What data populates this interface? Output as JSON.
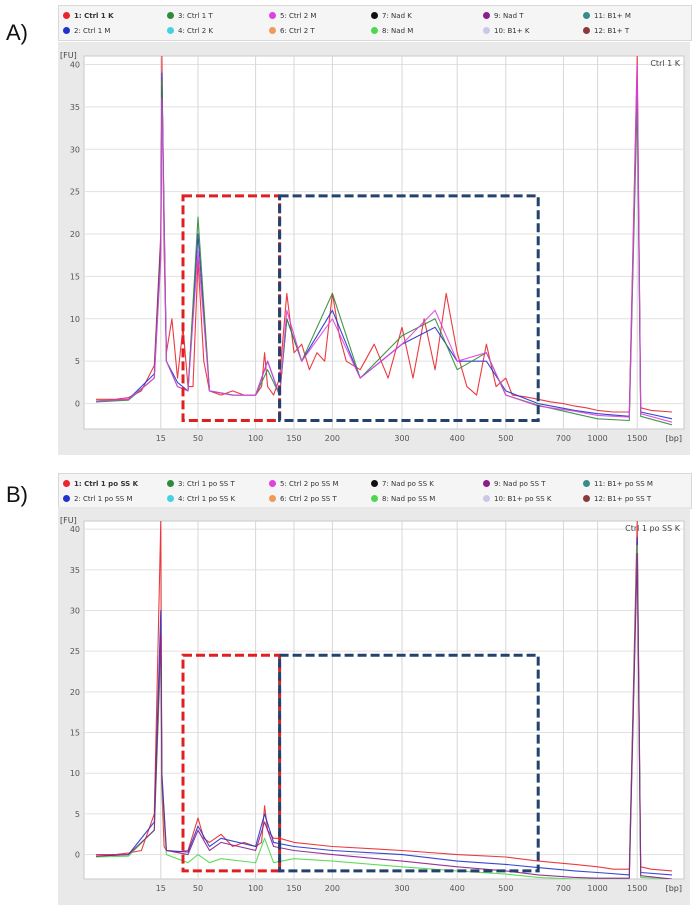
{
  "panels": [
    {
      "label": "A)",
      "corner_label": "Ctrl 1 K",
      "legend": [
        {
          "text": "1: Ctrl 1 K",
          "color": "#e8262b",
          "bold": true
        },
        {
          "text": "2: Ctrl 1 M",
          "color": "#2233cc",
          "bold": false
        },
        {
          "text": "3: Ctrl 1 T",
          "color": "#2e8b3a",
          "bold": false
        },
        {
          "text": "4: Ctrl 2 K",
          "color": "#46d1e0",
          "bold": false
        },
        {
          "text": "5: Ctrl 2 M",
          "color": "#e040e0",
          "bold": false
        },
        {
          "text": "6: Ctrl 2 T",
          "color": "#f09a5a",
          "bold": false
        },
        {
          "text": "7: Nad K",
          "color": "#111111",
          "bold": false
        },
        {
          "text": "8: Nad M",
          "color": "#4cd84c",
          "bold": false
        },
        {
          "text": "9: Nad T",
          "color": "#8a1e8a",
          "bold": false
        },
        {
          "text": "10: B1+ K",
          "color": "#c8c8e8",
          "bold": false
        },
        {
          "text": "11: B1+ M",
          "color": "#3a8a8a",
          "bold": false
        },
        {
          "text": "12: B1+ T",
          "color": "#8a3a3a",
          "bold": false
        }
      ]
    },
    {
      "label": "B)",
      "corner_label": "Ctrl 1 po SS K",
      "legend": [
        {
          "text": "1: Ctrl 1 po SS K",
          "color": "#e8262b",
          "bold": true
        },
        {
          "text": "2: Ctrl 1 po SS M",
          "color": "#2233cc",
          "bold": false
        },
        {
          "text": "3: Ctrl 1 po SS T",
          "color": "#2e8b3a",
          "bold": false
        },
        {
          "text": "4: Ctrl 1 po SS K",
          "color": "#46d1e0",
          "bold": false
        },
        {
          "text": "5: Ctrl 2 po SS M",
          "color": "#e040e0",
          "bold": false
        },
        {
          "text": "6: Ctrl 2 po SS T",
          "color": "#f09a5a",
          "bold": false
        },
        {
          "text": "7: Nad po SS K",
          "color": "#111111",
          "bold": false
        },
        {
          "text": "8: Nad po SS M",
          "color": "#4cd84c",
          "bold": false
        },
        {
          "text": "9: Nad po SS T",
          "color": "#8a1e8a",
          "bold": false
        },
        {
          "text": "10: B1+ po SS K",
          "color": "#c8c8e8",
          "bold": false
        },
        {
          "text": "11: B1+ po SS M",
          "color": "#3a8a8a",
          "bold": false
        },
        {
          "text": "12: B1+ po SS T",
          "color": "#8a3a3a",
          "bold": false
        }
      ]
    }
  ],
  "chart_data": [
    {
      "type": "line",
      "ylabel": "[FU]",
      "xlabel": "[bp]",
      "ylim": [
        -3,
        41
      ],
      "y_ticks": [
        0,
        5,
        10,
        15,
        20,
        25,
        30,
        35,
        40
      ],
      "x_ticks": [
        "15",
        "50",
        "100",
        "150",
        "200",
        "300",
        "400",
        "500",
        "700",
        "1000",
        "1500"
      ],
      "grid": true,
      "boxes": [
        {
          "color": "#e02020",
          "x": [
            "35",
            "140"
          ],
          "y": [
            -2,
            24.5
          ]
        },
        {
          "color": "#23426e",
          "x": [
            "140",
            "600"
          ],
          "y": [
            -2,
            24.5
          ]
        }
      ],
      "series": [
        {
          "color": "#e8262b",
          "x": [
            "5",
            "8",
            "10",
            "12",
            "14",
            "15",
            "16",
            "18",
            "20",
            "25",
            "30",
            "35",
            "40",
            "45",
            "50",
            "55",
            "60",
            "70",
            "80",
            "90",
            "100",
            "110",
            "115",
            "120",
            "130",
            "140",
            "145",
            "150",
            "160",
            "170",
            "180",
            "190",
            "200",
            "210",
            "220",
            "240",
            "260",
            "280",
            "300",
            "320",
            "340",
            "360",
            "380",
            "400",
            "420",
            "440",
            "460",
            "480",
            "500",
            "520",
            "560",
            "600",
            "650",
            "700",
            "800",
            "900",
            "1000",
            "1200",
            "1400",
            "1500",
            "1550",
            "1700",
            "2000"
          ],
          "y": [
            0.5,
            0.5,
            0.7,
            1.5,
            4.5,
            20,
            41,
            18,
            6,
            10,
            3,
            9,
            2,
            2,
            17,
            5,
            1.5,
            1,
            1.5,
            1,
            1,
            2,
            6,
            2,
            1,
            3,
            13,
            6,
            7,
            4,
            6,
            5,
            13,
            8,
            5,
            4,
            7,
            3,
            9,
            3,
            10,
            4,
            13,
            6,
            2,
            1,
            7,
            2,
            3,
            1,
            0.8,
            0.5,
            0.2,
            0,
            -0.3,
            -0.5,
            -0.8,
            -1,
            -1,
            41,
            -0.5,
            -0.8,
            -1
          ]
        },
        {
          "color": "#2233cc",
          "x": [
            "5",
            "10",
            "14",
            "15",
            "16",
            "20",
            "30",
            "40",
            "50",
            "60",
            "80",
            "100",
            "120",
            "140",
            "145",
            "160",
            "200",
            "240",
            "300",
            "360",
            "400",
            "460",
            "500",
            "600",
            "800",
            "1000",
            "1400",
            "1500",
            "1550",
            "2000"
          ],
          "y": [
            0.3,
            0.5,
            3.5,
            19,
            39,
            5,
            2.5,
            1.5,
            20,
            1.5,
            1,
            1,
            5,
            1,
            10,
            5,
            11,
            3,
            7,
            9,
            5,
            5,
            1.5,
            0,
            -0.8,
            -1.2,
            -1.5,
            38,
            -1,
            -1.8
          ]
        },
        {
          "color": "#2e8b3a",
          "x": [
            "5",
            "10",
            "14",
            "15",
            "16",
            "20",
            "30",
            "40",
            "50",
            "60",
            "80",
            "100",
            "120",
            "140",
            "145",
            "160",
            "200",
            "240",
            "300",
            "360",
            "400",
            "460",
            "500",
            "600",
            "800",
            "1000",
            "1400",
            "1500",
            "1550",
            "2000"
          ],
          "y": [
            0.2,
            0.4,
            3,
            18,
            38,
            5,
            2,
            1.5,
            22,
            1.5,
            1,
            1,
            4,
            1,
            10,
            5,
            13,
            3,
            8,
            10,
            4,
            6,
            1,
            -0.2,
            -1.2,
            -1.8,
            -2,
            36,
            -1.5,
            -2.5
          ]
        },
        {
          "color": "#e040e0",
          "x": [
            "5",
            "10",
            "14",
            "15",
            "16",
            "20",
            "30",
            "40",
            "50",
            "60",
            "80",
            "100",
            "120",
            "140",
            "145",
            "160",
            "200",
            "240",
            "300",
            "360",
            "400",
            "460",
            "500",
            "600",
            "800",
            "1000",
            "1400",
            "1500",
            "1550",
            "2000"
          ],
          "y": [
            0.3,
            0.5,
            3,
            17,
            36,
            5,
            2,
            1.5,
            18,
            1.5,
            1,
            1,
            5,
            1,
            11,
            5,
            10,
            3,
            7,
            11,
            5,
            6,
            1,
            -0.3,
            -0.9,
            -1.4,
            -1.6,
            40,
            -1.2,
            -2.2
          ]
        }
      ]
    },
    {
      "type": "line",
      "ylabel": "[FU]",
      "xlabel": "[bp]",
      "ylim": [
        -3,
        41
      ],
      "y_ticks": [
        0,
        5,
        10,
        15,
        20,
        25,
        30,
        35,
        40
      ],
      "x_ticks": [
        "15",
        "50",
        "100",
        "150",
        "200",
        "300",
        "400",
        "500",
        "700",
        "1000",
        "1500"
      ],
      "grid": true,
      "boxes": [
        {
          "color": "#e02020",
          "x": [
            "35",
            "140"
          ],
          "y": [
            -2,
            24.5
          ]
        },
        {
          "color": "#23426e",
          "x": [
            "140",
            "600"
          ],
          "y": [
            -2,
            24.5
          ]
        }
      ],
      "series": [
        {
          "color": "#e8262b",
          "x": [
            "5",
            "8",
            "10",
            "12",
            "14",
            "15",
            "16",
            "18",
            "20",
            "30",
            "40",
            "50",
            "55",
            "60",
            "70",
            "80",
            "90",
            "100",
            "110",
            "115",
            "120",
            "130",
            "140",
            "150",
            "200",
            "300",
            "400",
            "500",
            "600",
            "800",
            "1000",
            "1200",
            "1400",
            "1500",
            "1550",
            "1700",
            "2000"
          ],
          "y": [
            0,
            0,
            0.2,
            0.5,
            5,
            41,
            8,
            1,
            0.5,
            0.3,
            0.5,
            4.5,
            2,
            1.5,
            2.5,
            1,
            1.5,
            1,
            1.5,
            6,
            3,
            2,
            2,
            1.5,
            1,
            0.5,
            0,
            -0.3,
            -0.8,
            -1.2,
            -1.5,
            -1.8,
            -1.8,
            41,
            -1.5,
            -1.8,
            -2
          ]
        },
        {
          "color": "#2233cc",
          "x": [
            "5",
            "10",
            "14",
            "15",
            "16",
            "20",
            "40",
            "50",
            "60",
            "70",
            "100",
            "115",
            "130",
            "150",
            "200",
            "300",
            "400",
            "500",
            "600",
            "800",
            "1000",
            "1400",
            "1500",
            "1550",
            "2000"
          ],
          "y": [
            -0.2,
            0,
            4,
            30,
            10,
            0.5,
            0.3,
            3.5,
            1,
            2,
            1,
            5,
            1.5,
            1,
            0.5,
            0,
            -0.8,
            -1.2,
            -1.6,
            -2,
            -2.2,
            -2.5,
            39,
            -2.2,
            -2.5
          ]
        },
        {
          "color": "#4cd84c",
          "x": [
            "5",
            "10",
            "14",
            "15",
            "16",
            "20",
            "40",
            "50",
            "60",
            "70",
            "100",
            "115",
            "130",
            "150",
            "200",
            "300",
            "400",
            "500",
            "600",
            "800",
            "1000",
            "1400",
            "1500",
            "1550",
            "2000"
          ],
          "y": [
            -0.3,
            -0.2,
            3,
            25,
            8,
            0,
            -1,
            0,
            -1,
            -0.5,
            -1,
            2,
            -1,
            -0.5,
            -0.8,
            -1.5,
            -2,
            -2.4,
            -2.8,
            -3,
            -3,
            -3,
            38,
            -2.8,
            -3
          ]
        },
        {
          "color": "#8a1e8a",
          "x": [
            "5",
            "10",
            "14",
            "15",
            "16",
            "20",
            "40",
            "50",
            "60",
            "70",
            "100",
            "115",
            "130",
            "150",
            "200",
            "300",
            "400",
            "500",
            "600",
            "800",
            "1000",
            "1400",
            "1500",
            "1550",
            "2000"
          ],
          "y": [
            -0.2,
            0,
            3,
            27,
            9,
            0.5,
            0,
            3,
            0.5,
            1.5,
            0.5,
            4,
            1,
            0.5,
            0,
            -0.8,
            -1.5,
            -2,
            -2.5,
            -2.8,
            -2.9,
            -2.9,
            37,
            -2.6,
            -3
          ]
        }
      ]
    }
  ]
}
